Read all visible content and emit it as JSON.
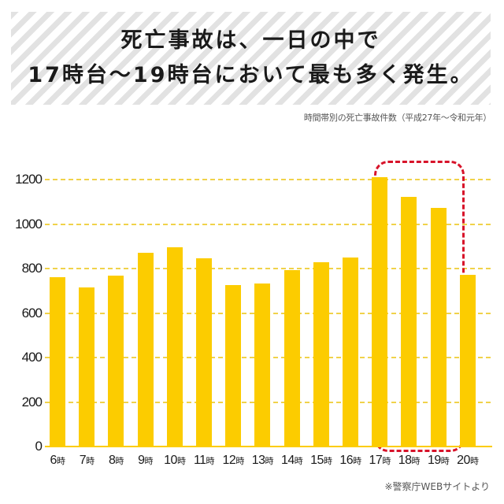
{
  "header": {
    "title_lines": [
      "死亡事故は、一日の中で",
      "17時台〜19時台において最も多く発生。"
    ],
    "subtitle": "時間帯別の死亡事故件数（平成27年〜令和元年）"
  },
  "footer": {
    "source": "※警察庁WEBサイトより"
  },
  "colors": {
    "bar": "#fccc00",
    "gridline": "#f0d24a",
    "highlight": "#d7132a",
    "stripe": "#e2e2e2"
  },
  "chart_data": {
    "type": "bar",
    "title": "死亡事故は、一日の中で17時台〜19時台において最も多く発生。",
    "subtitle": "時間帯別の死亡事故件数（平成27年〜令和元年）",
    "xlabel": "",
    "ylabel": "",
    "unit_suffix": "時",
    "categories": [
      "6時",
      "7時",
      "8時",
      "9時",
      "10時",
      "11時",
      "12時",
      "13時",
      "14時",
      "15時",
      "16時",
      "17時",
      "18時",
      "19時",
      "20時"
    ],
    "category_numbers": [
      "6",
      "7",
      "8",
      "9",
      "10",
      "11",
      "12",
      "13",
      "14",
      "15",
      "16",
      "17",
      "18",
      "19",
      "20"
    ],
    "values": [
      760,
      715,
      768,
      870,
      895,
      845,
      727,
      733,
      793,
      828,
      849,
      1210,
      1123,
      1073,
      772
    ],
    "ylim": [
      0,
      1200
    ],
    "yticks": [
      0,
      200,
      400,
      600,
      800,
      1000,
      1200
    ],
    "grid": true,
    "grid_style": "dashed horizontal",
    "legend": null,
    "highlighted_categories": [
      "17時",
      "18時",
      "19時"
    ],
    "annotation": "red dashed rounded rectangle around 17時–19時",
    "source": "※警察庁WEBサイトより"
  }
}
